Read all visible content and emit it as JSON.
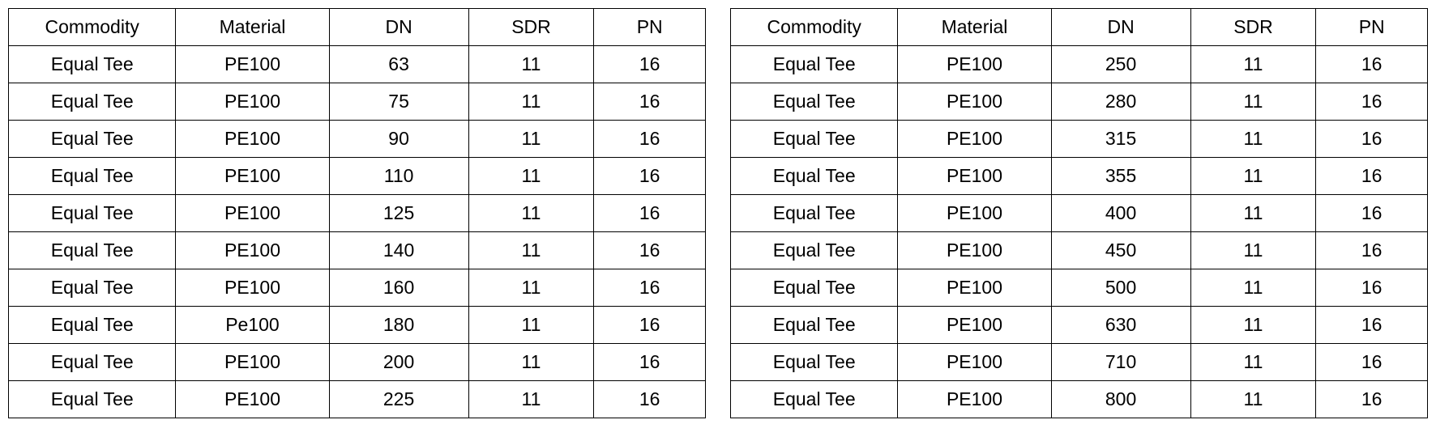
{
  "tables": [
    {
      "columns": [
        "Commodity",
        "Material",
        "DN",
        "SDR",
        "PN"
      ],
      "rows": [
        [
          "Equal Tee",
          "PE100",
          "63",
          "11",
          "16"
        ],
        [
          "Equal Tee",
          "PE100",
          "75",
          "11",
          "16"
        ],
        [
          "Equal Tee",
          "PE100",
          "90",
          "11",
          "16"
        ],
        [
          "Equal Tee",
          "PE100",
          "110",
          "11",
          "16"
        ],
        [
          "Equal Tee",
          "PE100",
          "125",
          "11",
          "16"
        ],
        [
          "Equal Tee",
          "PE100",
          "140",
          "11",
          "16"
        ],
        [
          "Equal Tee",
          "PE100",
          "160",
          "11",
          "16"
        ],
        [
          "Equal Tee",
          "Pe100",
          "180",
          "11",
          "16"
        ],
        [
          "Equal Tee",
          "PE100",
          "200",
          "11",
          "16"
        ],
        [
          "Equal Tee",
          "PE100",
          "225",
          "11",
          "16"
        ]
      ],
      "col_classes": [
        "col-commodity",
        "col-material",
        "col-dn",
        "col-sdr",
        "col-pn"
      ],
      "border_color": "#000000",
      "background_color": "#ffffff",
      "text_color": "#000000",
      "font_size_pt": 17,
      "type": "table"
    },
    {
      "columns": [
        "Commodity",
        "Material",
        "DN",
        "SDR",
        "PN"
      ],
      "rows": [
        [
          "Equal Tee",
          "PE100",
          "250",
          "11",
          "16"
        ],
        [
          "Equal Tee",
          "PE100",
          "280",
          "11",
          "16"
        ],
        [
          "Equal Tee",
          "PE100",
          "315",
          "11",
          "16"
        ],
        [
          "Equal Tee",
          "PE100",
          "355",
          "11",
          "16"
        ],
        [
          "Equal Tee",
          "PE100",
          "400",
          "11",
          "16"
        ],
        [
          "Equal Tee",
          "PE100",
          "450",
          "11",
          "16"
        ],
        [
          "Equal Tee",
          "PE100",
          "500",
          "11",
          "16"
        ],
        [
          "Equal Tee",
          "PE100",
          "630",
          "11",
          "16"
        ],
        [
          "Equal Tee",
          "PE100",
          "710",
          "11",
          "16"
        ],
        [
          "Equal Tee",
          "PE100",
          "800",
          "11",
          "16"
        ]
      ],
      "col_classes": [
        "col-commodity",
        "col-material",
        "col-dn",
        "col-sdr",
        "col-pn"
      ],
      "border_color": "#000000",
      "background_color": "#ffffff",
      "text_color": "#000000",
      "font_size_pt": 17,
      "type": "table"
    }
  ]
}
